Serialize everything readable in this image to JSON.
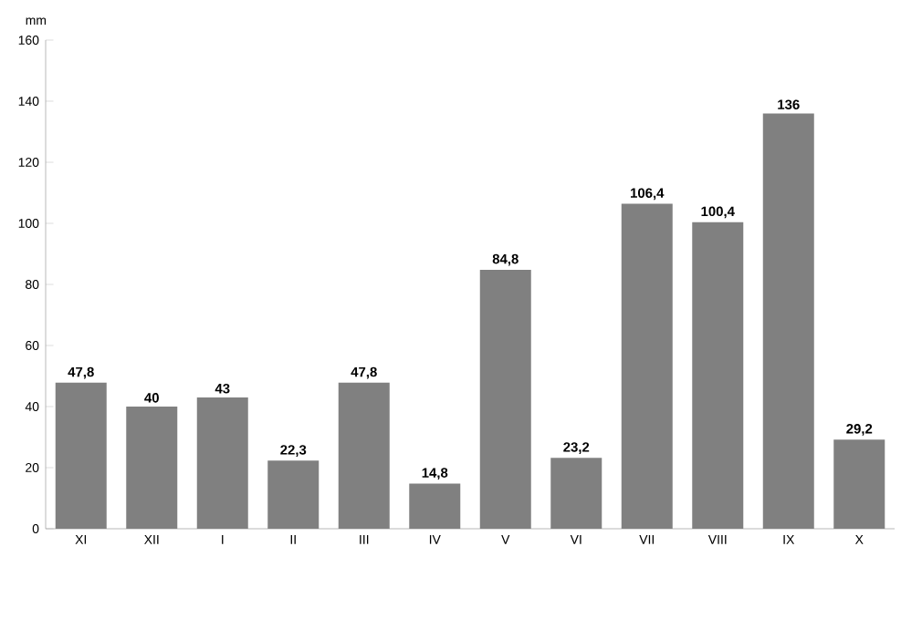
{
  "chart_data": {
    "type": "bar",
    "ylabel": "mm",
    "categories": [
      "XI",
      "XII",
      "I",
      "II",
      "III",
      "IV",
      "V",
      "VI",
      "VII",
      "VIII",
      "IX",
      "X"
    ],
    "values": [
      47.8,
      40,
      43,
      22.3,
      47.8,
      14.8,
      84.8,
      23.2,
      106.4,
      100.4,
      136,
      29.2
    ],
    "value_labels": [
      "47,8",
      "40",
      "43",
      "22,3",
      "47,8",
      "14,8",
      "84,8",
      "23,2",
      "106,4",
      "100,4",
      "136",
      "29,2"
    ],
    "color": "#808080",
    "ylim": [
      0,
      160
    ],
    "yticks": [
      0,
      20,
      40,
      60,
      80,
      100,
      120,
      140,
      160
    ],
    "grid": false
  }
}
